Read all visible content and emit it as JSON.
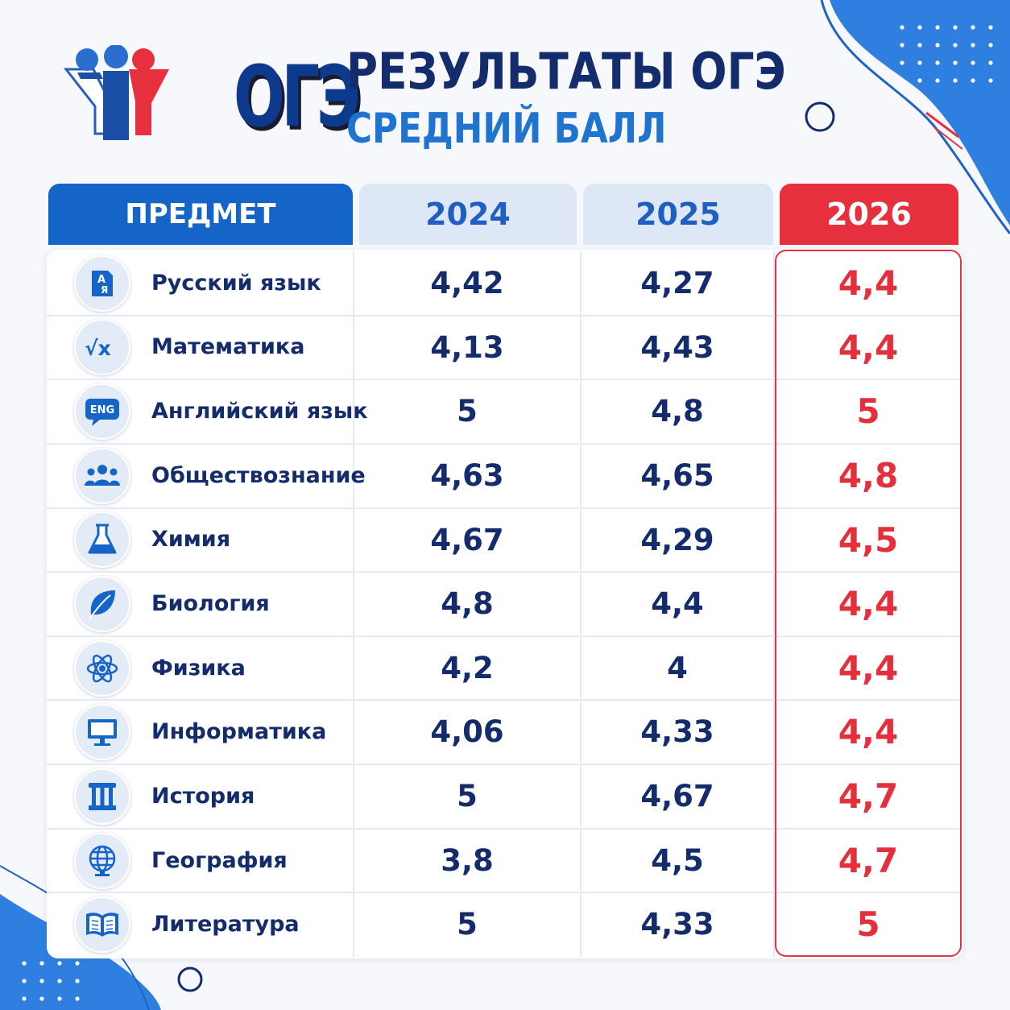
{
  "header": {
    "logo_text": "ОГЭ",
    "title": "РЕЗУЛЬТАТЫ ОГЭ",
    "subtitle": "СРЕДНИЙ БАЛЛ"
  },
  "colors": {
    "brand_blue": "#1565c9",
    "accent_red": "#e6303e",
    "text_dark": "#142c6b",
    "text_blue": "#1f74cf"
  },
  "chart_data": {
    "type": "table",
    "columns": [
      "ПРЕДМЕТ",
      "2024",
      "2025",
      "2026"
    ],
    "highlight_column": "2026",
    "rows": [
      {
        "subject": "Русский язык",
        "icon": "alphabet-icon",
        "icon_text": [
          "А",
          "Я"
        ],
        "values": [
          "4,42",
          "4,27",
          "4,4"
        ]
      },
      {
        "subject": "Математика",
        "icon": "square-root-icon",
        "icon_text": [
          "√x"
        ],
        "values": [
          "4,13",
          "4,43",
          "4,4"
        ]
      },
      {
        "subject": "Английский язык",
        "icon": "eng-speech-bubble-icon",
        "icon_text": [
          "ENG"
        ],
        "values": [
          "5",
          "4,8",
          "5"
        ]
      },
      {
        "subject": "Обществознание",
        "icon": "people-group-icon",
        "icon_text": [],
        "values": [
          "4,63",
          "4,65",
          "4,8"
        ]
      },
      {
        "subject": "Химия",
        "icon": "flask-icon",
        "icon_text": [],
        "values": [
          "4,67",
          "4,29",
          "4,5"
        ]
      },
      {
        "subject": "Биология",
        "icon": "leaf-icon",
        "icon_text": [],
        "values": [
          "4,8",
          "4,4",
          "4,4"
        ]
      },
      {
        "subject": "Физика",
        "icon": "atom-icon",
        "icon_text": [],
        "values": [
          "4,2",
          "4",
          "4,4"
        ]
      },
      {
        "subject": "Информатика",
        "icon": "monitor-icon",
        "icon_text": [],
        "values": [
          "4,06",
          "4,33",
          "4,4"
        ]
      },
      {
        "subject": "История",
        "icon": "column-icon",
        "icon_text": [],
        "values": [
          "5",
          "4,67",
          "4,7"
        ]
      },
      {
        "subject": "География",
        "icon": "globe-icon",
        "icon_text": [],
        "values": [
          "3,8",
          "4,5",
          "4,7"
        ]
      },
      {
        "subject": "Литература",
        "icon": "open-book-icon",
        "icon_text": [],
        "values": [
          "5",
          "4,33",
          "5"
        ]
      }
    ]
  }
}
